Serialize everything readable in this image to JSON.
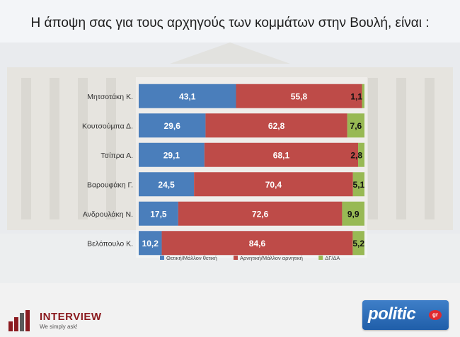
{
  "title": "Η άποψη σας για τους αρχηγούς των κομμάτων στην Βουλή,  είναι :",
  "chart_data": {
    "type": "bar",
    "orientation": "horizontal",
    "stacked": true,
    "categories": [
      "Μητσοτάκη Κ.",
      "Κουτσούμπα Δ.",
      "Τσίπρα Α.",
      "Βαρουφάκη Γ.",
      "Ανδρουλάκη Ν.",
      "Βελόπουλο Κ."
    ],
    "series": [
      {
        "name": "Θετική/Μάλλον θετική",
        "color": "#4a7ebb",
        "values": [
          43.1,
          29.6,
          29.1,
          24.5,
          17.5,
          10.2
        ],
        "labels": [
          "43,1",
          "29,6",
          "29,1",
          "24,5",
          "17,5",
          "10,2"
        ]
      },
      {
        "name": "Αρνητική/Μάλλον αρνητική",
        "color": "#be4b48",
        "values": [
          55.8,
          62.8,
          68.1,
          70.4,
          72.6,
          84.6
        ],
        "labels": [
          "55,8",
          "62,8",
          "68,1",
          "70,4",
          "72,6",
          "84,6"
        ]
      },
      {
        "name": "ΔΓ/ΔΑ",
        "color": "#98b954",
        "values": [
          1.1,
          7.6,
          2.8,
          5.1,
          9.9,
          5.2
        ],
        "labels": [
          "1,1",
          "7,6",
          "2,8",
          "5,1",
          "9,9",
          "5,2"
        ]
      }
    ],
    "legend_position": "bottom",
    "grid": false
  },
  "logos": {
    "interview_name": "INTERVIEW",
    "interview_tag": "We simply ask!",
    "politic_word": "politic",
    "politic_badge": "gr"
  }
}
